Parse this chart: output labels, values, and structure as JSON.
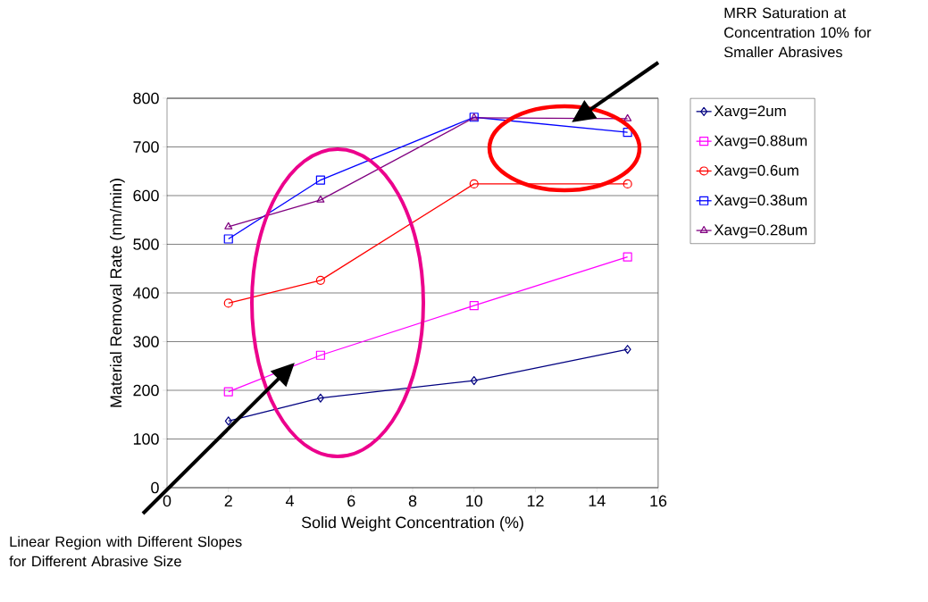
{
  "chart_data": {
    "type": "line",
    "xlabel": "Solid Weight Concentration (%)",
    "ylabel": "Material Removal Rate (nm/min)",
    "x": [
      2,
      5,
      10,
      15
    ],
    "series": [
      {
        "name": "Xavg=2um",
        "color": "#000080",
        "marker": "diamond",
        "values": [
          137,
          184,
          220,
          284
        ]
      },
      {
        "name": "Xavg=0.88um",
        "color": "#ff00ff",
        "marker": "square",
        "values": [
          197,
          272,
          374,
          474
        ]
      },
      {
        "name": "Xavg=0.6um",
        "color": "#ff0000",
        "marker": "circle",
        "values": [
          379,
          426,
          624,
          624
        ]
      },
      {
        "name": "Xavg=0.38um",
        "color": "#0000ff",
        "marker": "square",
        "values": [
          511,
          632,
          761,
          730
        ]
      },
      {
        "name": "Xavg=0.28um",
        "color": "#800080",
        "marker": "triangle",
        "values": [
          536,
          591,
          760,
          758
        ]
      }
    ],
    "xlim": [
      0,
      16
    ],
    "xticks": [
      0,
      2,
      4,
      6,
      8,
      10,
      12,
      14,
      16
    ],
    "ylim": [
      0,
      800
    ],
    "yticks": [
      0,
      100,
      200,
      300,
      400,
      500,
      600,
      700,
      800
    ],
    "grid": "y",
    "legend": "right",
    "annotations": [
      "MRR Saturation at Concentration 10% for Smaller Abrasives",
      "Linear Region with Different Slopes for Different Abrasive Size"
    ]
  }
}
